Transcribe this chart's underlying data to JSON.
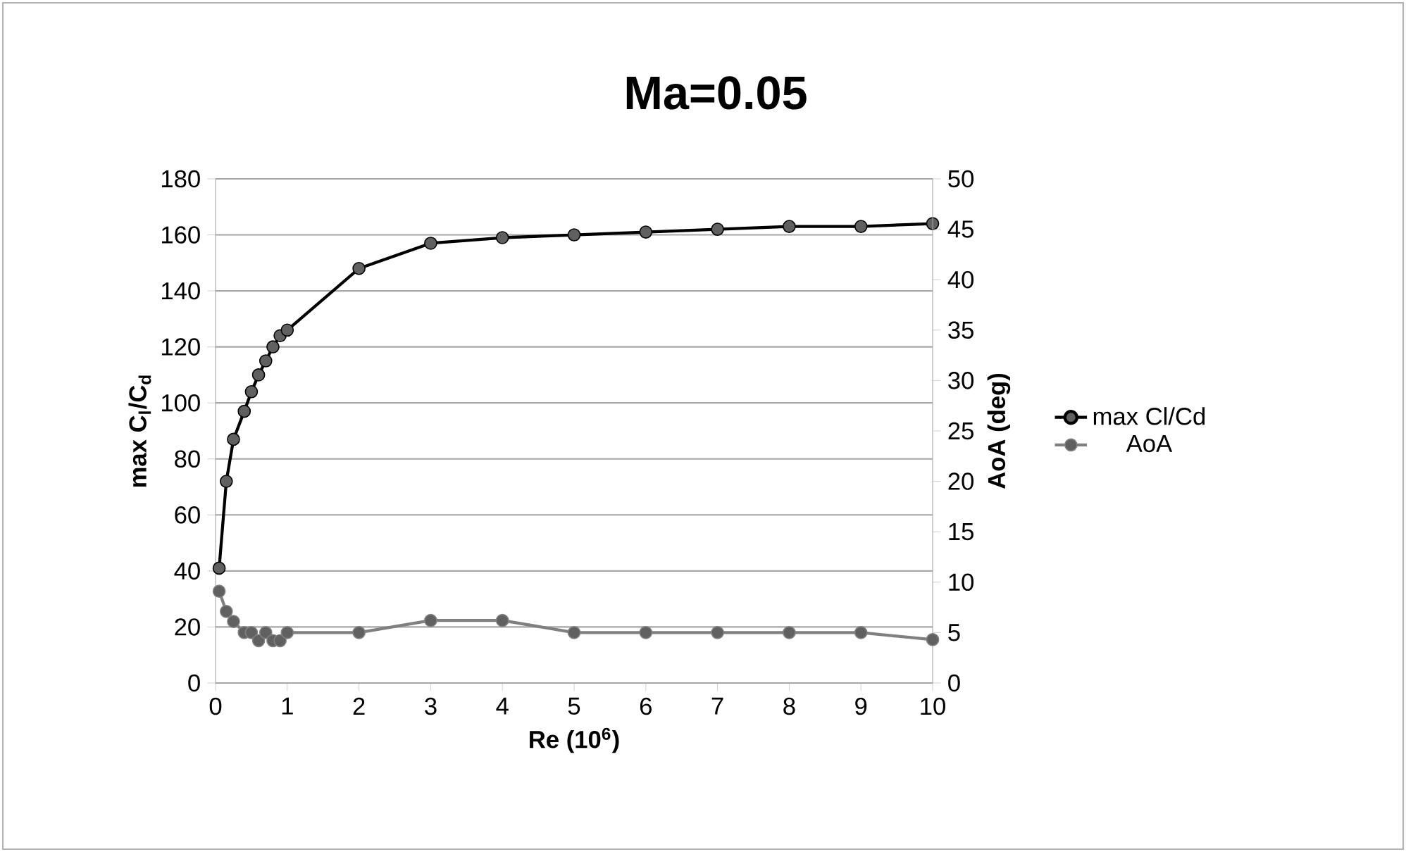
{
  "chart_data": {
    "type": "line",
    "title": "Ma=0.05",
    "xlabel": "Re (10$^{6}$)",
    "ylabel": "max C$_{l}$/C$_{d}$",
    "y2label": "AoA (deg)",
    "x": [
      0.05,
      0.15,
      0.25,
      0.4,
      0.5,
      0.6,
      0.7,
      0.8,
      0.9,
      1,
      2,
      3,
      4,
      5,
      6,
      7,
      8,
      9,
      10
    ],
    "series": [
      {
        "name": "max Cl/Cd",
        "color": "#000000",
        "values": [
          41,
          72,
          87,
          97,
          104,
          110,
          115,
          120,
          124,
          126,
          148,
          157,
          159,
          160,
          161,
          162,
          163,
          163,
          164
        ]
      },
      {
        "name": "AoA",
        "color": "#808080",
        "axis": "y2",
        "values": [
          9.1,
          7.1,
          6.1,
          5,
          5,
          4.2,
          5,
          4.2,
          4.2,
          5,
          5,
          6.2,
          6.2,
          5,
          5,
          5,
          5,
          5,
          4.3
        ]
      }
    ],
    "xlim": [
      0,
      10
    ],
    "xticks": [
      0,
      1,
      2,
      3,
      4,
      5,
      6,
      7,
      8,
      9,
      10
    ],
    "ylim": [
      0,
      180
    ],
    "yticks": [
      0,
      20,
      40,
      60,
      80,
      100,
      120,
      140,
      160,
      180
    ],
    "y2lim": [
      0,
      50
    ],
    "y2ticks": [
      0,
      5,
      10,
      15,
      20,
      25,
      30,
      35,
      40,
      45,
      50
    ],
    "grid": "y",
    "legend": "right",
    "marker": "circle",
    "line_style": "solid"
  }
}
